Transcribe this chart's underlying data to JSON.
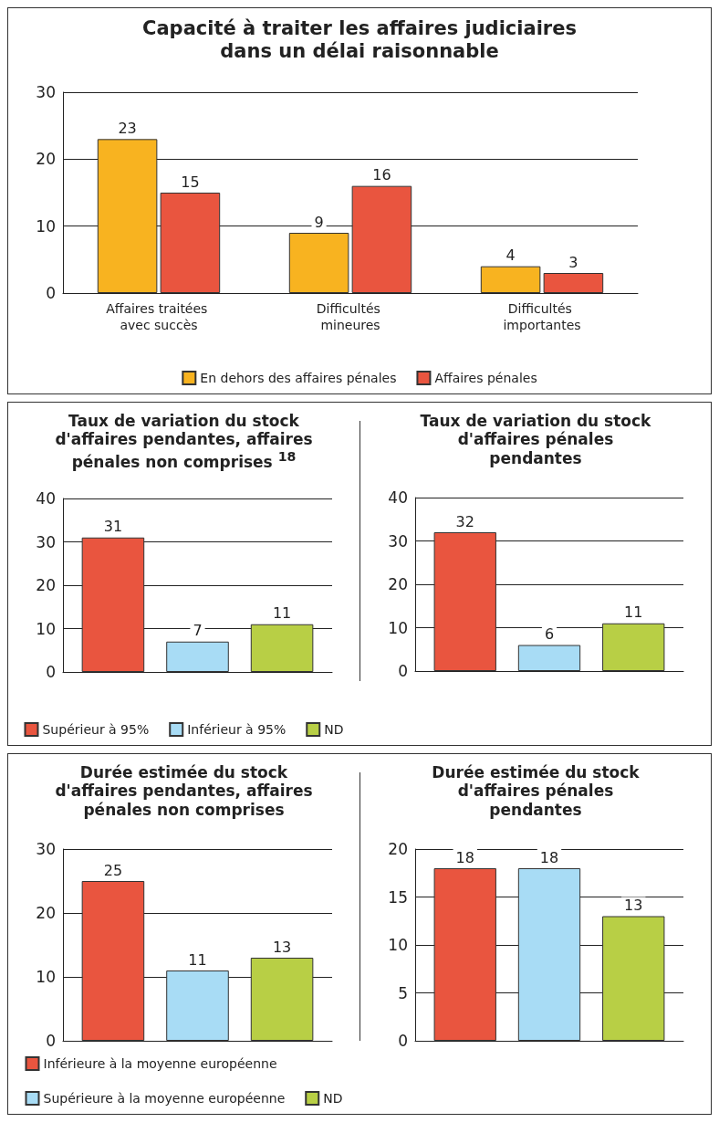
{
  "chart_data": [
    {
      "type": "bar",
      "title": "Capacité à traiter les affaires judiciaires dans un délai raisonnable",
      "categories": [
        "Affaires traitées avec succès",
        "Difficultés mineures",
        "Difficultés importantes"
      ],
      "series": [
        {
          "name": "En dehors des affaires pénales",
          "color": "#f8b320",
          "values": [
            23,
            9,
            4
          ]
        },
        {
          "name": "Affaires pénales",
          "color": "#e9553f",
          "values": [
            15,
            16,
            3
          ]
        }
      ],
      "ylim": [
        0,
        30
      ],
      "yticks": [
        0,
        10,
        20,
        30
      ],
      "grid": "y",
      "legend": "bottom",
      "data_labels": true
    },
    {
      "type": "bar",
      "title": "Taux de variation du stock d'affaires pendantes, affaires pénales non comprises $^{18}$",
      "categories": [
        null
      ],
      "series": [
        {
          "name": "Supérieur à 95%",
          "color": "#e9553f",
          "values": [
            31
          ]
        },
        {
          "name": "Inférieur à 95%",
          "color": "#a8dcf5",
          "values": [
            7
          ]
        },
        {
          "name": "ND",
          "color": "#b8cf45",
          "values": [
            11
          ]
        }
      ],
      "ylim": [
        0,
        40
      ],
      "yticks": [
        0,
        10,
        20,
        30,
        40
      ],
      "grid": "y",
      "legend": "bottom",
      "data_labels": true
    },
    {
      "type": "bar",
      "title": "Taux de variation du stock d'affaires pénales pendantes",
      "categories": [
        null
      ],
      "series": [
        {
          "color": "#e9553f",
          "values": [
            32
          ]
        },
        {
          "color": "#a8dcf5",
          "values": [
            6
          ]
        },
        {
          "color": "#b8cf45",
          "values": [
            11
          ]
        }
      ],
      "ylim": [
        0,
        40
      ],
      "yticks": [
        0,
        10,
        20,
        30,
        40
      ],
      "grid": "y",
      "data_labels": true
    },
    {
      "type": "bar",
      "title": "Durée estimée du stock d'affaires pendantes, affaires pénales non comprises",
      "categories": [
        null
      ],
      "series": [
        {
          "name": "Inférieure à la moyenne européenne",
          "color": "#e9553f",
          "values": [
            25
          ]
        },
        {
          "name": "Supérieure à la moyenne européenne",
          "color": "#a8dcf5",
          "values": [
            11
          ]
        },
        {
          "name": "ND",
          "color": "#b8cf45",
          "values": [
            13
          ]
        }
      ],
      "ylim": [
        0,
        30
      ],
      "yticks": [
        0,
        10,
        20,
        30
      ],
      "grid": "y",
      "legend": "bottom",
      "data_labels": true
    },
    {
      "type": "bar",
      "title": "Durée estimée du stock d'affaires pénales pendantes",
      "categories": [
        null
      ],
      "series": [
        {
          "color": "#e9553f",
          "values": [
            18
          ]
        },
        {
          "color": "#a8dcf5",
          "values": [
            18
          ]
        },
        {
          "color": "#b8cf45",
          "values": [
            13
          ]
        }
      ],
      "ylim": [
        0,
        20
      ],
      "yticks": [
        0,
        5,
        10,
        15,
        20
      ],
      "grid": "y",
      "data_labels": true
    }
  ]
}
